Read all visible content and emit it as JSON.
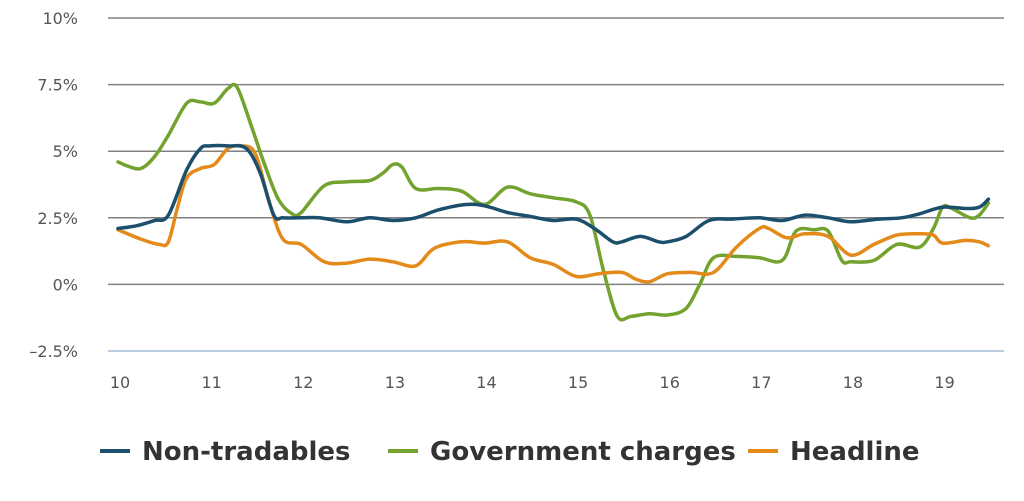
{
  "chart_data": {
    "type": "line",
    "title": "",
    "xlabel": "",
    "ylabel": "",
    "ylim": [
      -2.5,
      10
    ],
    "xlim": [
      10,
      19.55
    ],
    "y_ticks": [
      10,
      7.5,
      5,
      2.5,
      0,
      -2.5
    ],
    "y_tick_labels": [
      "10%",
      "7.5%",
      "5%",
      "2.5%",
      "0%",
      "–2.5%"
    ],
    "x_ticks": [
      10,
      11,
      12,
      13,
      14,
      15,
      16,
      17,
      18,
      19
    ],
    "x_tick_labels": [
      "10",
      "11",
      "12",
      "13",
      "14",
      "15",
      "16",
      "17",
      "18",
      "19"
    ],
    "grid": "horizontal",
    "legend_position": "bottom",
    "colors": {
      "gridline": "#808080",
      "baseline": "#b8cde0"
    },
    "series": [
      {
        "name": "Non-tradables",
        "color": "#1b4f6c",
        "points": [
          [
            10.0,
            2.1
          ],
          [
            10.2,
            2.2
          ],
          [
            10.4,
            2.4
          ],
          [
            10.55,
            2.6
          ],
          [
            10.75,
            4.3
          ],
          [
            10.9,
            5.1
          ],
          [
            11.0,
            5.2
          ],
          [
            11.2,
            5.2
          ],
          [
            11.4,
            5.1
          ],
          [
            11.55,
            4.2
          ],
          [
            11.7,
            2.6
          ],
          [
            11.8,
            2.5
          ],
          [
            12.0,
            2.5
          ],
          [
            12.2,
            2.5
          ],
          [
            12.5,
            2.35
          ],
          [
            12.75,
            2.5
          ],
          [
            13.0,
            2.4
          ],
          [
            13.25,
            2.5
          ],
          [
            13.5,
            2.8
          ],
          [
            13.8,
            3.0
          ],
          [
            14.0,
            2.95
          ],
          [
            14.25,
            2.7
          ],
          [
            14.5,
            2.55
          ],
          [
            14.75,
            2.4
          ],
          [
            15.0,
            2.45
          ],
          [
            15.2,
            2.1
          ],
          [
            15.4,
            1.6
          ],
          [
            15.5,
            1.6
          ],
          [
            15.7,
            1.8
          ],
          [
            15.9,
            1.6
          ],
          [
            16.0,
            1.6
          ],
          [
            16.2,
            1.8
          ],
          [
            16.45,
            2.4
          ],
          [
            16.7,
            2.45
          ],
          [
            17.0,
            2.5
          ],
          [
            17.25,
            2.4
          ],
          [
            17.5,
            2.6
          ],
          [
            17.75,
            2.5
          ],
          [
            18.0,
            2.35
          ],
          [
            18.3,
            2.45
          ],
          [
            18.55,
            2.5
          ],
          [
            18.75,
            2.65
          ],
          [
            19.0,
            2.9
          ],
          [
            19.25,
            2.85
          ],
          [
            19.4,
            2.9
          ],
          [
            19.5,
            3.2
          ]
        ]
      },
      {
        "name": "Government charges",
        "color": "#73a22e",
        "points": [
          [
            10.0,
            4.6
          ],
          [
            10.1,
            4.45
          ],
          [
            10.25,
            4.35
          ],
          [
            10.4,
            4.8
          ],
          [
            10.55,
            5.6
          ],
          [
            10.75,
            6.8
          ],
          [
            10.9,
            6.85
          ],
          [
            11.05,
            6.8
          ],
          [
            11.2,
            7.35
          ],
          [
            11.3,
            7.4
          ],
          [
            11.45,
            6.0
          ],
          [
            11.6,
            4.5
          ],
          [
            11.75,
            3.2
          ],
          [
            11.9,
            2.65
          ],
          [
            12.0,
            2.7
          ],
          [
            12.25,
            3.7
          ],
          [
            12.5,
            3.85
          ],
          [
            12.75,
            3.9
          ],
          [
            12.9,
            4.2
          ],
          [
            13.0,
            4.5
          ],
          [
            13.1,
            4.4
          ],
          [
            13.25,
            3.6
          ],
          [
            13.5,
            3.6
          ],
          [
            13.75,
            3.5
          ],
          [
            14.0,
            3.0
          ],
          [
            14.25,
            3.65
          ],
          [
            14.5,
            3.4
          ],
          [
            14.75,
            3.25
          ],
          [
            15.0,
            3.1
          ],
          [
            15.15,
            2.6
          ],
          [
            15.3,
            0.5
          ],
          [
            15.45,
            -1.2
          ],
          [
            15.6,
            -1.2
          ],
          [
            15.8,
            -1.1
          ],
          [
            16.0,
            -1.15
          ],
          [
            16.2,
            -0.9
          ],
          [
            16.35,
            0.0
          ],
          [
            16.5,
            1.0
          ],
          [
            16.75,
            1.05
          ],
          [
            17.0,
            1.0
          ],
          [
            17.25,
            0.9
          ],
          [
            17.4,
            2.0
          ],
          [
            17.6,
            2.05
          ],
          [
            17.75,
            2.0
          ],
          [
            17.9,
            0.9
          ],
          [
            18.0,
            0.85
          ],
          [
            18.25,
            0.9
          ],
          [
            18.5,
            1.5
          ],
          [
            18.75,
            1.4
          ],
          [
            18.9,
            2.1
          ],
          [
            19.0,
            2.9
          ],
          [
            19.1,
            2.85
          ],
          [
            19.3,
            2.5
          ],
          [
            19.4,
            2.6
          ],
          [
            19.5,
            3.05
          ]
        ]
      },
      {
        "name": "Headline",
        "color": "#e48a1b",
        "points": [
          [
            10.0,
            2.05
          ],
          [
            10.25,
            1.7
          ],
          [
            10.45,
            1.5
          ],
          [
            10.55,
            1.6
          ],
          [
            10.65,
            2.9
          ],
          [
            10.75,
            4.0
          ],
          [
            10.9,
            4.35
          ],
          [
            11.05,
            4.5
          ],
          [
            11.2,
            5.1
          ],
          [
            11.35,
            5.2
          ],
          [
            11.5,
            4.9
          ],
          [
            11.65,
            3.1
          ],
          [
            11.8,
            1.7
          ],
          [
            12.0,
            1.5
          ],
          [
            12.25,
            0.85
          ],
          [
            12.5,
            0.8
          ],
          [
            12.75,
            0.95
          ],
          [
            13.0,
            0.85
          ],
          [
            13.25,
            0.7
          ],
          [
            13.45,
            1.35
          ],
          [
            13.75,
            1.6
          ],
          [
            14.0,
            1.55
          ],
          [
            14.25,
            1.6
          ],
          [
            14.5,
            1.0
          ],
          [
            14.75,
            0.75
          ],
          [
            15.0,
            0.3
          ],
          [
            15.25,
            0.4
          ],
          [
            15.5,
            0.45
          ],
          [
            15.65,
            0.2
          ],
          [
            15.8,
            0.1
          ],
          [
            16.0,
            0.4
          ],
          [
            16.25,
            0.45
          ],
          [
            16.5,
            0.45
          ],
          [
            16.75,
            1.4
          ],
          [
            17.0,
            2.1
          ],
          [
            17.1,
            2.1
          ],
          [
            17.3,
            1.75
          ],
          [
            17.5,
            1.9
          ],
          [
            17.75,
            1.8
          ],
          [
            18.0,
            1.1
          ],
          [
            18.25,
            1.5
          ],
          [
            18.5,
            1.85
          ],
          [
            18.75,
            1.9
          ],
          [
            18.9,
            1.85
          ],
          [
            19.0,
            1.55
          ],
          [
            19.25,
            1.65
          ],
          [
            19.4,
            1.6
          ],
          [
            19.5,
            1.45
          ]
        ]
      }
    ]
  }
}
